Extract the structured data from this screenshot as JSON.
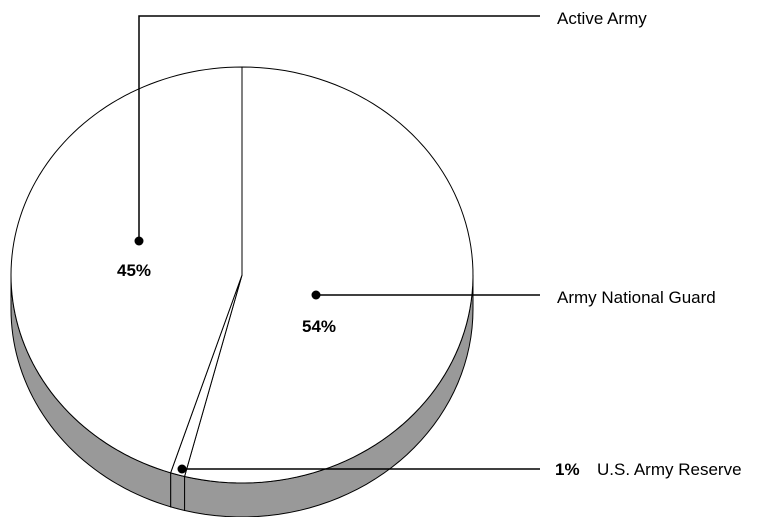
{
  "chart_data": {
    "type": "pie",
    "style": "3d",
    "title": "",
    "categories": [
      "Army National Guard",
      "U.S. Army Reserve",
      "Active Army"
    ],
    "values": [
      54,
      1,
      45
    ],
    "value_labels": [
      "54%",
      "1%",
      "45%"
    ],
    "colors": {
      "top": "#ffffff",
      "side": "#999999",
      "stroke": "#000000"
    },
    "legend": "callout lines to the right"
  }
}
